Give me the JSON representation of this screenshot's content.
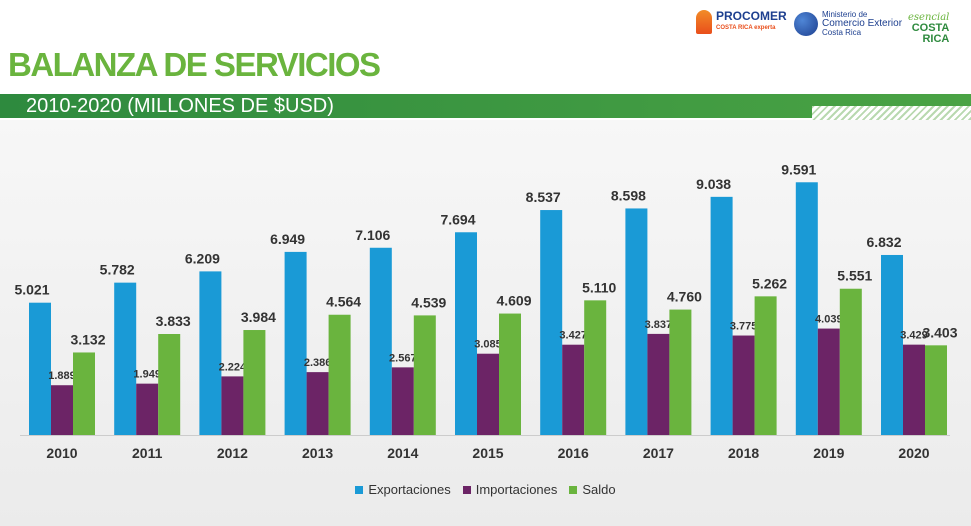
{
  "header": {
    "title": "BALANZA DE SERVICIOS",
    "subtitle": "2010-2020 (MILLONES DE $USD)"
  },
  "logos": {
    "procomer": {
      "name": "PROCOMER",
      "tagline": "COSTA RICA experta"
    },
    "comex": {
      "line1": "Ministerio de",
      "line2": "Comercio Exterior",
      "line3": "Costa Rica"
    },
    "costarica": {
      "line1": "esencial",
      "line2": "COSTA",
      "line3": "RICA"
    }
  },
  "chart_data": {
    "type": "bar",
    "categories": [
      "2010",
      "2011",
      "2012",
      "2013",
      "2014",
      "2015",
      "2016",
      "2017",
      "2018",
      "2019",
      "2020"
    ],
    "series": [
      {
        "name": "Exportaciones",
        "color": "#1a9ad6",
        "values": [
          5.021,
          5.782,
          6.209,
          6.949,
          7.106,
          7.694,
          8.537,
          8.598,
          9.038,
          9.591,
          6.832
        ],
        "labels": [
          "5.021",
          "5.782",
          "6.209",
          "6.949",
          "7.106",
          "7.694",
          "8.537",
          "8.598",
          "9.038",
          "9.591",
          "6.832"
        ]
      },
      {
        "name": "Importaciones",
        "color": "#6c2466",
        "values": [
          1.889,
          1.949,
          2.224,
          2.386,
          2.567,
          3.085,
          3.427,
          3.837,
          3.775,
          4.039,
          3.429
        ],
        "labels": [
          "1.889",
          "1.949",
          "2.224",
          "2.386",
          "2.567",
          "3.085",
          "3.427",
          "3.837",
          "3.775",
          "4.039",
          "3.429"
        ]
      },
      {
        "name": "Saldo",
        "color": "#6ab43e",
        "values": [
          3.132,
          3.833,
          3.984,
          4.564,
          4.539,
          4.609,
          5.11,
          4.76,
          5.262,
          5.551,
          3.403
        ],
        "labels": [
          "3.132",
          "3.833",
          "3.984",
          "4.564",
          "4.539",
          "4.609",
          "5.110",
          "4.760",
          "5.262",
          "5.551",
          "3.403"
        ]
      }
    ],
    "title": "",
    "xlabel": "",
    "ylabel": "",
    "ylim": [
      0,
      10
    ],
    "grid": false,
    "legend": "bottom-center"
  }
}
